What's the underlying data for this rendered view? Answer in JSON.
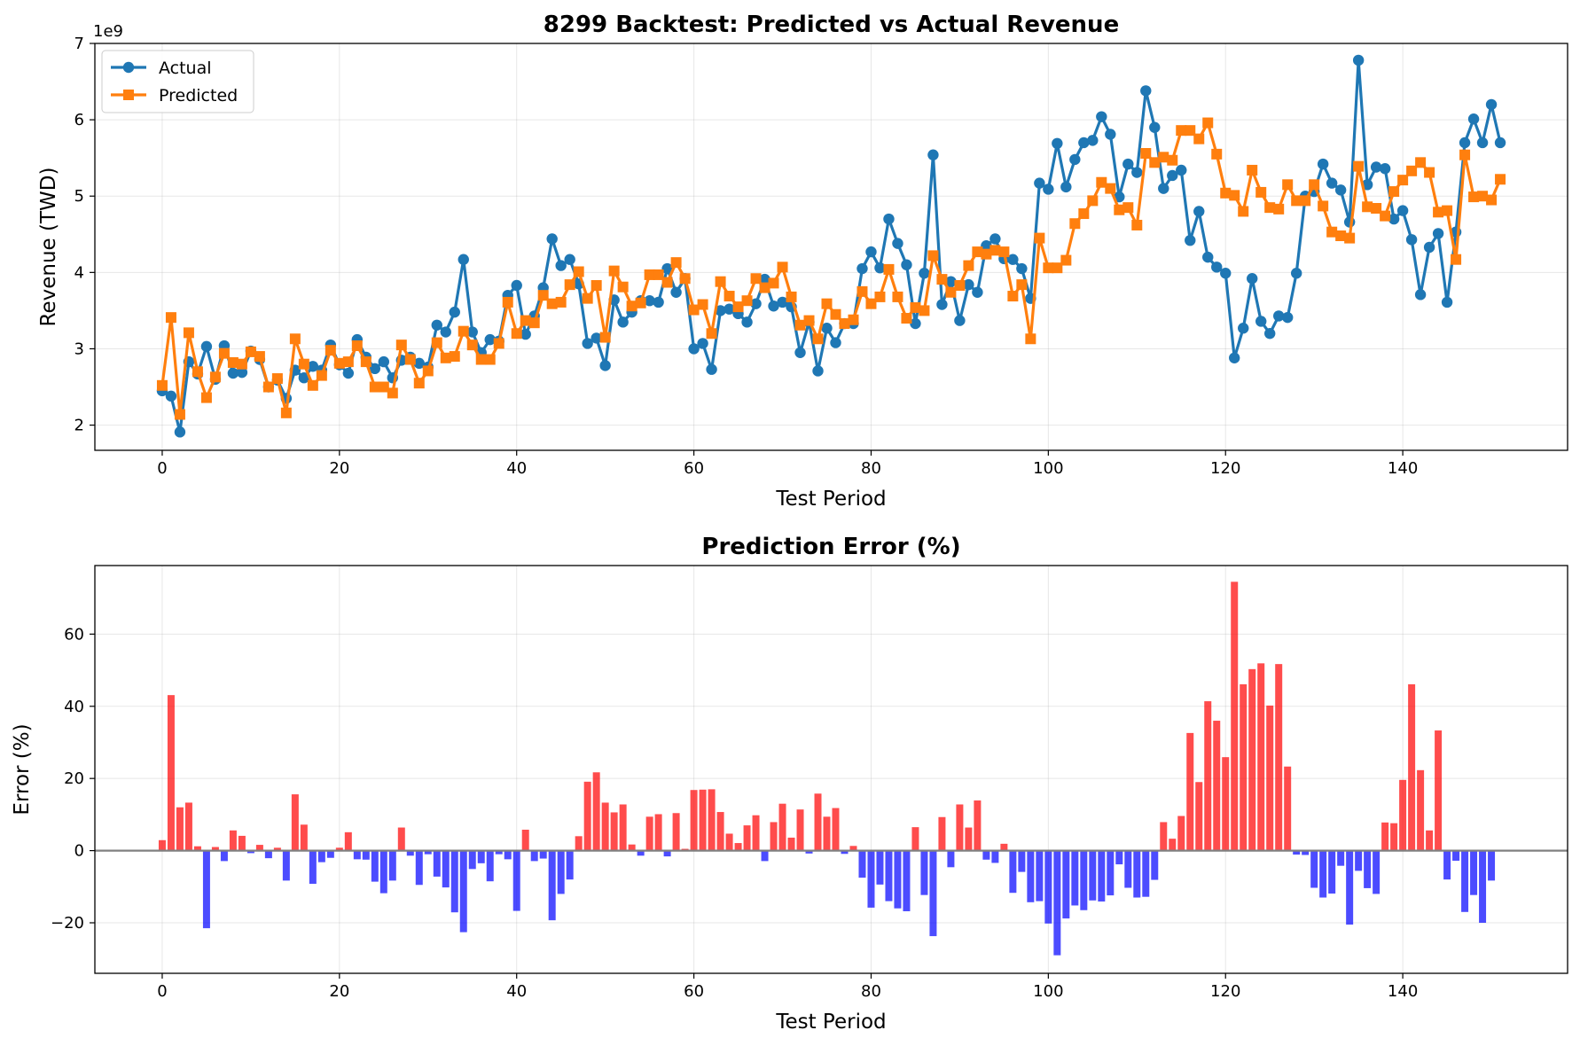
{
  "chart_data": [
    {
      "type": "line",
      "title": "8299 Backtest: Predicted vs Actual Revenue",
      "xlabel": "Test Period",
      "ylabel": "Revenue (TWD)",
      "y_offset_label": "1e9",
      "xlim": [
        -7.6,
        158.6
      ],
      "ylim": [
        1.67,
        7.0
      ],
      "xticks": [
        0,
        20,
        40,
        60,
        80,
        100,
        120,
        140
      ],
      "yticks": [
        2,
        3,
        4,
        5,
        6,
        7
      ],
      "grid": true,
      "legend_position": "upper-left",
      "colors": {
        "Actual": "#1f77b4",
        "Predicted": "#ff7f0e"
      },
      "series": [
        {
          "name": "Actual",
          "marker": "circle",
          "values": [
            2.45,
            2.38,
            1.91,
            2.83,
            2.67,
            3.03,
            2.6,
            3.04,
            2.68,
            2.69,
            2.97,
            2.86,
            2.5,
            2.59,
            2.35,
            2.72,
            2.62,
            2.77,
            2.72,
            3.05,
            2.79,
            2.68,
            3.12,
            2.89,
            2.74,
            2.83,
            2.62,
            2.85,
            2.89,
            2.81,
            2.76,
            3.31,
            3.22,
            3.48,
            4.17,
            3.22,
            2.95,
            3.12,
            3.1,
            3.7,
            3.83,
            3.19,
            3.43,
            3.8,
            4.44,
            4.09,
            4.17,
            3.85,
            3.07,
            3.14,
            2.78,
            3.64,
            3.35,
            3.48,
            3.63,
            3.63,
            3.61,
            4.05,
            3.74,
            3.92,
            3.0,
            3.07,
            2.73,
            3.5,
            3.52,
            3.46,
            3.35,
            3.59,
            3.91,
            3.56,
            3.61,
            3.55,
            2.95,
            3.35,
            2.71,
            3.27,
            3.08,
            3.33,
            3.33,
            4.05,
            4.27,
            4.06,
            4.7,
            4.38,
            4.1,
            3.33,
            3.99,
            5.54,
            3.58,
            3.88,
            3.37,
            3.84,
            3.74,
            4.35,
            4.44,
            4.18,
            4.17,
            4.05,
            3.66,
            5.17,
            5.09,
            5.69,
            5.12,
            5.48,
            5.7,
            5.73,
            6.04,
            5.81,
            4.99,
            5.42,
            5.31,
            6.38,
            5.9,
            5.1,
            5.27,
            5.34,
            4.42,
            4.8,
            4.2,
            4.07,
            3.99,
            2.88,
            3.27,
            3.92,
            3.36,
            3.2,
            3.43,
            3.41,
            3.99,
            5.0,
            5.06,
            5.42,
            5.17,
            5.08,
            4.66,
            6.78,
            5.15,
            5.38,
            5.36,
            4.7,
            4.81,
            4.43,
            3.71,
            4.33,
            4.51,
            3.61,
            4.53,
            5.7,
            6.01,
            5.7,
            6.2,
            5.7
          ]
        },
        {
          "name": "Predicted",
          "marker": "square",
          "values": [
            2.52,
            3.41,
            2.14,
            3.21,
            2.7,
            2.36,
            2.63,
            2.94,
            2.82,
            2.8,
            2.96,
            2.9,
            2.5,
            2.61,
            2.16,
            3.13,
            2.8,
            2.52,
            2.65,
            2.98,
            2.81,
            2.83,
            3.04,
            2.83,
            2.5,
            2.5,
            2.42,
            3.05,
            2.86,
            2.55,
            2.71,
            3.08,
            2.88,
            2.9,
            3.23,
            3.05,
            2.86,
            2.86,
            3.07,
            3.61,
            3.2,
            3.37,
            3.34,
            3.7,
            3.59,
            3.61,
            3.84,
            4.01,
            3.66,
            3.83,
            3.15,
            4.02,
            3.81,
            3.56,
            3.6,
            3.97,
            3.97,
            3.87,
            4.13,
            3.92,
            3.51,
            3.58,
            3.2,
            3.88,
            3.69,
            3.55,
            3.63,
            3.92,
            3.8,
            3.86,
            4.07,
            3.68,
            3.31,
            3.37,
            3.13,
            3.59,
            3.45,
            3.33,
            3.38,
            3.75,
            3.59,
            3.68,
            4.04,
            3.68,
            3.4,
            3.54,
            3.5,
            4.22,
            3.91,
            3.74,
            3.83,
            4.09,
            4.27,
            4.24,
            4.29,
            4.27,
            3.69,
            3.84,
            3.13,
            4.45,
            4.06,
            4.06,
            4.16,
            4.64,
            4.77,
            4.94,
            5.18,
            5.1,
            4.82,
            4.85,
            4.62,
            5.56,
            5.44,
            5.51,
            5.47,
            5.86,
            5.86,
            5.75,
            5.96,
            5.55,
            5.04,
            5.01,
            4.8,
            5.34,
            5.05,
            4.85,
            4.83,
            5.15,
            4.94,
            4.94,
            5.15,
            4.87,
            4.53,
            4.48,
            4.45,
            5.39,
            4.86,
            4.84,
            4.74,
            5.06,
            5.21,
            5.33,
            5.44,
            5.31,
            4.79,
            4.81,
            4.17,
            5.54,
            4.99,
            5.0,
            4.95,
            5.22
          ]
        }
      ]
    },
    {
      "type": "bar",
      "title": "Prediction Error (%)",
      "xlabel": "Test Period",
      "ylabel": "Error (%)",
      "xlim": [
        -7.6,
        158.6
      ],
      "ylim": [
        -34,
        79
      ],
      "xticks": [
        0,
        20,
        40,
        60,
        80,
        100,
        120,
        140
      ],
      "yticks": [
        -20,
        0,
        20,
        40,
        60
      ],
      "grid": true,
      "baseline": 0,
      "colors": {
        "positive": "#ff0000",
        "negative": "#0000ff",
        "baseline": "#808080"
      },
      "values": [
        2.9,
        43.1,
        12.0,
        13.3,
        1.2,
        -21.5,
        1.0,
        -2.9,
        5.6,
        4.1,
        -0.7,
        1.6,
        -2.1,
        0.8,
        -8.3,
        15.6,
        7.2,
        -9.2,
        -3.2,
        -2.0,
        0.8,
        5.1,
        -2.4,
        -2.5,
        -8.6,
        -11.8,
        -8.3,
        6.4,
        -1.4,
        -9.5,
        -1.0,
        -7.2,
        -10.2,
        -17.1,
        -22.6,
        -5.1,
        -3.5,
        -8.5,
        -1.0,
        -2.4,
        -16.7,
        5.8,
        -2.9,
        -2.2,
        -19.3,
        -12.0,
        -8.0,
        4.0,
        19.1,
        21.7,
        13.3,
        10.6,
        12.8,
        1.7,
        -1.4,
        9.4,
        10.1,
        -1.6,
        10.4,
        0.5,
        16.8,
        16.9,
        17.0,
        10.7,
        4.7,
        2.1,
        7.0,
        9.8,
        -2.9,
        7.9,
        13.0,
        3.6,
        11.4,
        -0.8,
        15.8,
        9.4,
        11.8,
        -0.9,
        1.3,
        -7.5,
        -15.8,
        -9.4,
        -14.0,
        -16.0,
        -16.8,
        6.5,
        -12.3,
        -23.7,
        9.3,
        -4.6,
        12.8,
        6.4,
        13.9,
        -2.5,
        -3.4,
        1.9,
        -11.7,
        -5.9,
        -14.3,
        -14.0,
        -20.2,
        -29.0,
        -18.8,
        -15.2,
        -16.5,
        -13.8,
        -14.1,
        -12.4,
        -3.8,
        -10.3,
        -13.0,
        -12.8,
        -8.1,
        7.9,
        3.3,
        9.6,
        32.6,
        19.0,
        41.4,
        36.0,
        25.9,
        74.5,
        46.1,
        50.3,
        51.9,
        40.2,
        51.7,
        23.3,
        -1.1,
        -1.2,
        -10.3,
        -13.0,
        -11.9,
        -4.2,
        -20.5,
        -5.6,
        -10.4,
        -12.0,
        7.8,
        7.6,
        19.6,
        46.1,
        22.3,
        5.6,
        33.3,
        -8.0,
        -2.8,
        -17.0,
        -12.3,
        -20.0,
        -8.3
      ]
    }
  ]
}
